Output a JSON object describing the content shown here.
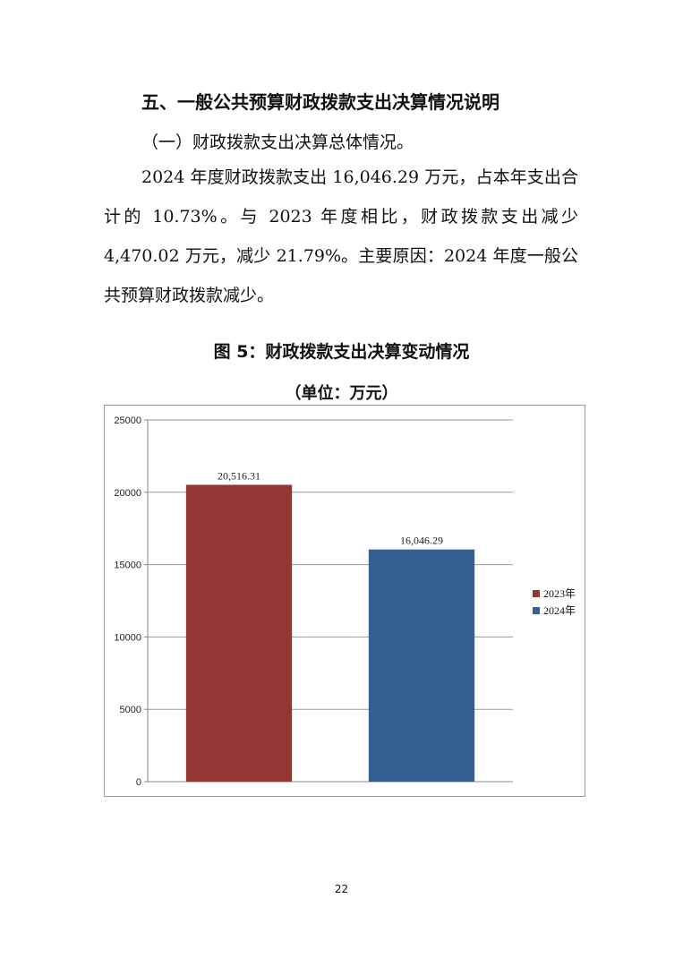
{
  "section": {
    "heading": "五、一般公共预算财政拨款支出决算情况说明",
    "subheading": "（一）财政拨款支出决算总体情况。",
    "paragraph": "2024 年度财政拨款支出 16,046.29 万元，占本年支出合计的 10.73%。与 2023 年度相比，财政拨款支出减少 4,470.02 万元，减少 21.79%。主要原因：2024 年度一般公共预算财政拨款减少。"
  },
  "figure": {
    "title": "图 5：财政拨款支出决算变动情况",
    "unit": "（单位：万元）"
  },
  "chart_data": {
    "type": "bar",
    "categories": [
      "2023年",
      "2024年"
    ],
    "values": [
      20516.31,
      16046.29
    ],
    "data_labels": [
      "20,516.31",
      "16,046.29"
    ],
    "ylim": [
      0,
      25000
    ],
    "yticks": [
      "0",
      "5000",
      "10000",
      "15000",
      "20000",
      "25000"
    ],
    "grid": true,
    "legend_position": "right",
    "legend": [
      "2023年",
      "2024年"
    ],
    "colors": [
      "#943634",
      "#355E91"
    ]
  },
  "page_number": "22"
}
